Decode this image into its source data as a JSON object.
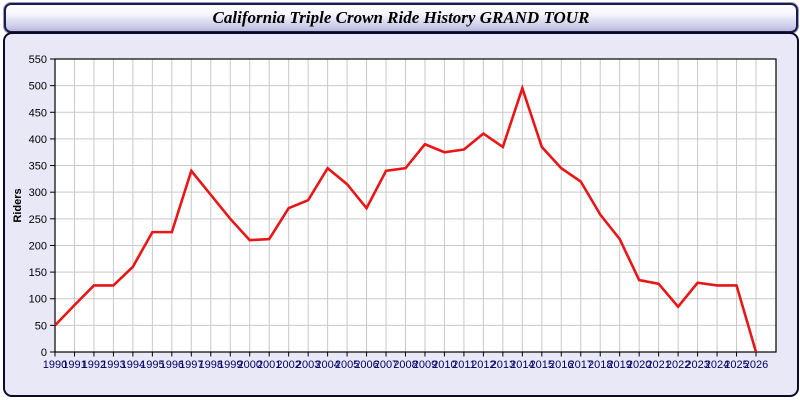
{
  "header": {
    "title": "California Triple Crown Ride History GRAND TOUR"
  },
  "chart_data": {
    "type": "line",
    "title": "California Triple Crown Ride History GRAND TOUR",
    "xlabel": "",
    "ylabel": "Riders",
    "x": [
      1990,
      1991,
      1992,
      1993,
      1994,
      1995,
      1996,
      1997,
      1998,
      1999,
      2000,
      2001,
      2002,
      2003,
      2004,
      2005,
      2006,
      2007,
      2008,
      2009,
      2010,
      2011,
      2012,
      2013,
      2014,
      2015,
      2016,
      2017,
      2018,
      2019,
      2020,
      2021,
      2022,
      2023,
      2024,
      2025,
      2026
    ],
    "series": [
      {
        "name": "Riders",
        "color": "#e81717",
        "values": [
          50,
          88,
          125,
          125,
          160,
          225,
          225,
          340,
          295,
          250,
          210,
          212,
          270,
          285,
          345,
          315,
          270,
          340,
          345,
          390,
          375,
          380,
          410,
          385,
          495,
          385,
          345,
          320,
          258,
          212,
          135,
          128,
          85,
          130,
          125,
          125,
          0
        ]
      }
    ],
    "ylim": [
      0,
      550
    ],
    "yticks": [
      0,
      50,
      100,
      150,
      200,
      250,
      300,
      350,
      400,
      450,
      500,
      550
    ],
    "grid": true,
    "legend": "none"
  },
  "colors": {
    "line_red": "#e81717",
    "panel_lavender": "#e8e8f7",
    "panel_border": "#0a0a2a",
    "plot_background": "#ffffff",
    "gridline": "#c9c9c9",
    "axis_line": "#000000",
    "x_tick_label": "#000066",
    "y_tick_label": "#000000",
    "title_color": "#000000"
  }
}
